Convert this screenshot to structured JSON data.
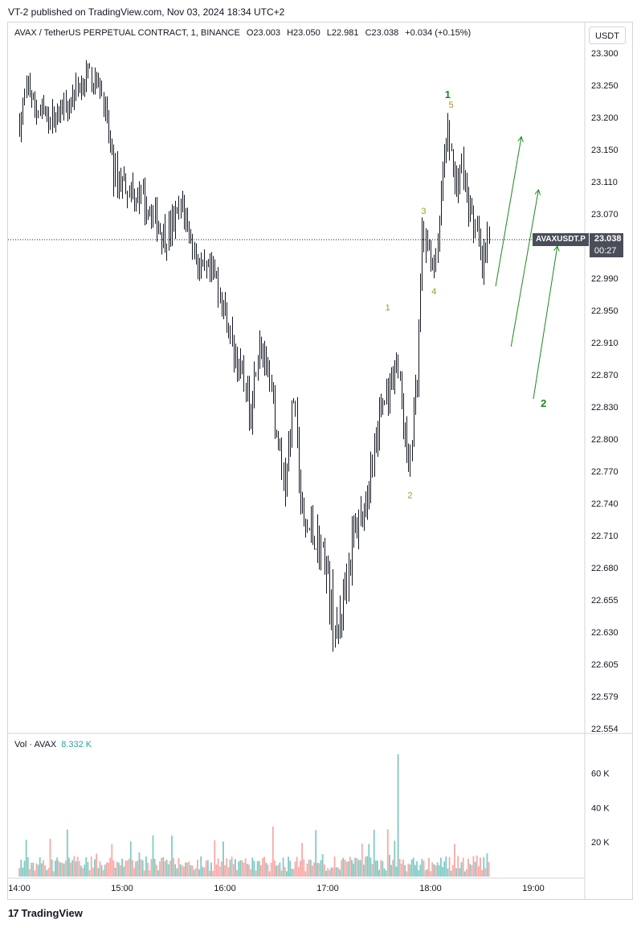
{
  "header": {
    "published": "VT-2 published on TradingView.com, Nov 03, 2024 18:34 UTC+2"
  },
  "legend": {
    "symbol": "AVAX / TetherUS PERPETUAL CONTRACT, 1, BINANCE",
    "open": "O23.003",
    "high": "H23.050",
    "low": "L22.981",
    "close": "C23.038",
    "change": "+0.034 (+0.15%)"
  },
  "currency_button": "USDT",
  "price_tag": {
    "symbol": "AVAXUSDT.P",
    "price": "23.038",
    "countdown": "00:27",
    "value": 23.038
  },
  "volume": {
    "label": "Vol · AVAX",
    "value": "8.332 K"
  },
  "footer": {
    "brand": "TradingView",
    "mark": "17"
  },
  "colors": {
    "up_volume": "#80cbc4",
    "down_volume": "#f7a9a7",
    "up_volume_peak": "#81c7bd",
    "wave_green": "#1b8a1b",
    "wave_olive": "#9a9a1a",
    "candle": "#131722"
  },
  "chart_data": [
    {
      "type": "candlestick",
      "title": "AVAX / TetherUS PERPETUAL CONTRACT, 1, BINANCE",
      "interval": "1 minute",
      "x_ticks": [
        "14:00",
        "15:00",
        "16:00",
        "17:00",
        "18:00",
        "19:00"
      ],
      "y_ticks": [
        "23.300",
        "23.250",
        "23.200",
        "23.150",
        "23.110",
        "23.070",
        "23.030",
        "22.990",
        "22.950",
        "22.910",
        "22.870",
        "22.830",
        "22.800",
        "22.770",
        "22.740",
        "22.710",
        "22.680",
        "22.655",
        "22.630",
        "22.605",
        "22.579",
        "22.554"
      ],
      "ylim": [
        22.554,
        23.3
      ],
      "current_price": 23.038,
      "price_path": [
        {
          "t": "14:00",
          "p": 23.19
        },
        {
          "t": "14:05",
          "p": 23.25
        },
        {
          "t": "14:10",
          "p": 23.21
        },
        {
          "t": "14:20",
          "p": 23.2
        },
        {
          "t": "14:30",
          "p": 23.23
        },
        {
          "t": "14:40",
          "p": 23.27
        },
        {
          "t": "14:48",
          "p": 23.24
        },
        {
          "t": "14:55",
          "p": 23.12
        },
        {
          "t": "15:05",
          "p": 23.1
        },
        {
          "t": "15:15",
          "p": 23.08
        },
        {
          "t": "15:25",
          "p": 23.04
        },
        {
          "t": "15:35",
          "p": 23.08
        },
        {
          "t": "15:45",
          "p": 23.0
        },
        {
          "t": "15:55",
          "p": 22.99
        },
        {
          "t": "16:05",
          "p": 22.9
        },
        {
          "t": "16:15",
          "p": 22.83
        },
        {
          "t": "16:20",
          "p": 22.92
        },
        {
          "t": "16:28",
          "p": 22.83
        },
        {
          "t": "16:35",
          "p": 22.76
        },
        {
          "t": "16:40",
          "p": 22.84
        },
        {
          "t": "16:45",
          "p": 22.72
        },
        {
          "t": "16:52",
          "p": 22.71
        },
        {
          "t": "16:58",
          "p": 22.69
        },
        {
          "t": "17:05",
          "p": 22.62
        },
        {
          "t": "17:10",
          "p": 22.67
        },
        {
          "t": "17:15",
          "p": 22.71
        },
        {
          "t": "17:22",
          "p": 22.74
        },
        {
          "t": "17:30",
          "p": 22.82
        },
        {
          "t": "17:35",
          "p": 22.85
        },
        {
          "t": "17:40",
          "p": 22.89
        },
        {
          "t": "17:44",
          "p": 22.82
        },
        {
          "t": "17:47",
          "p": 22.77
        },
        {
          "t": "17:52",
          "p": 22.86
        },
        {
          "t": "17:55",
          "p": 23.04
        },
        {
          "t": "18:00",
          "p": 23.02
        },
        {
          "t": "18:03",
          "p": 23.0
        },
        {
          "t": "18:07",
          "p": 23.12
        },
        {
          "t": "18:10",
          "p": 23.18
        },
        {
          "t": "18:14",
          "p": 23.1
        },
        {
          "t": "18:18",
          "p": 23.13
        },
        {
          "t": "18:22",
          "p": 23.08
        },
        {
          "t": "18:25",
          "p": 23.06
        },
        {
          "t": "18:28",
          "p": 23.03
        },
        {
          "t": "18:30",
          "p": 23.0
        },
        {
          "t": "18:34",
          "p": 23.038
        }
      ],
      "annotations": [
        {
          "label": "1",
          "kind": "minor",
          "t": "17:35",
          "p": 22.95
        },
        {
          "label": "2",
          "kind": "minor",
          "t": "17:48",
          "p": 22.745
        },
        {
          "label": "3",
          "kind": "minor",
          "t": "17:56",
          "p": 23.07
        },
        {
          "label": "4",
          "kind": "minor",
          "t": "18:02",
          "p": 22.97
        },
        {
          "label": "5",
          "kind": "minor",
          "t": "18:12",
          "p": 23.215
        },
        {
          "label": "1",
          "kind": "major",
          "t": "18:10",
          "p": 23.23
        },
        {
          "label": "2",
          "kind": "major",
          "t": "19:06",
          "p": 22.83
        }
      ]
    },
    {
      "type": "bar",
      "title": "Vol · AVAX",
      "y_ticks": [
        "60 K",
        "40 K",
        "20 K"
      ],
      "ylim": [
        0,
        70000
      ],
      "current_value": 8332,
      "peak_value": 71000,
      "peak_time": "17:41"
    }
  ]
}
